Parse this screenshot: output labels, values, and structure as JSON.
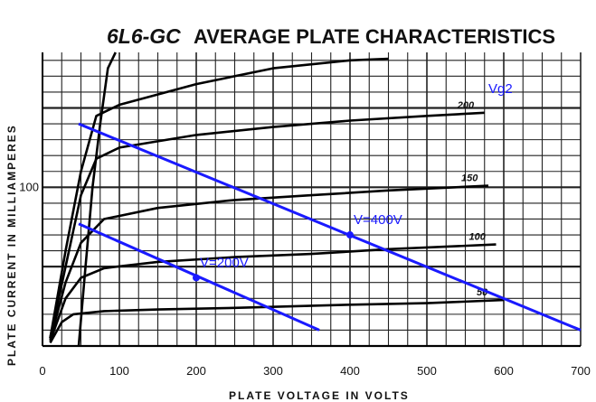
{
  "chart_data": {
    "type": "line",
    "title_tube": "6L6-GC",
    "title_main": "AVERAGE PLATE CHARACTERISTICS",
    "xlabel": "PLATE VOLTAGE IN VOLTS",
    "ylabel": "PLATE CURRENT IN MILLIAMPERES",
    "xlim": [
      0,
      700
    ],
    "ylim": [
      0,
      185
    ],
    "x_ticks": [
      0,
      100,
      200,
      300,
      400,
      500,
      600,
      700
    ],
    "y_ticks_labeled": [
      100
    ],
    "grid": true,
    "series": [
      {
        "name": "",
        "values": [
          [
            47,
            0
          ],
          [
            55,
            45
          ],
          [
            65,
            100
          ],
          [
            75,
            140
          ],
          [
            85,
            175
          ],
          [
            95,
            185
          ]
        ]
      },
      {
        "name": "",
        "values": [
          [
            10,
            5
          ],
          [
            30,
            60
          ],
          [
            50,
            110
          ],
          [
            70,
            145
          ],
          [
            100,
            152
          ],
          [
            200,
            165
          ],
          [
            300,
            175
          ],
          [
            400,
            180
          ],
          [
            450,
            181
          ]
        ]
      },
      {
        "name": "200",
        "values": [
          [
            10,
            5
          ],
          [
            30,
            50
          ],
          [
            50,
            95
          ],
          [
            70,
            118
          ],
          [
            100,
            125
          ],
          [
            200,
            133
          ],
          [
            300,
            138
          ],
          [
            400,
            142
          ],
          [
            500,
            145
          ],
          [
            575,
            147
          ]
        ]
      },
      {
        "name": "150",
        "values": [
          [
            10,
            4
          ],
          [
            30,
            40
          ],
          [
            50,
            65
          ],
          [
            80,
            80
          ],
          [
            150,
            87
          ],
          [
            250,
            92
          ],
          [
            350,
            95
          ],
          [
            450,
            98
          ],
          [
            580,
            101
          ]
        ]
      },
      {
        "name": "100",
        "values": [
          [
            10,
            3
          ],
          [
            30,
            30
          ],
          [
            50,
            43
          ],
          [
            80,
            49
          ],
          [
            150,
            53
          ],
          [
            250,
            56
          ],
          [
            350,
            58
          ],
          [
            450,
            61
          ],
          [
            590,
            64
          ]
        ]
      },
      {
        "name": "50",
        "values": [
          [
            10,
            2
          ],
          [
            25,
            15
          ],
          [
            40,
            20
          ],
          [
            80,
            22
          ],
          [
            150,
            23
          ],
          [
            250,
            24
          ],
          [
            400,
            26
          ],
          [
            500,
            27
          ],
          [
            600,
            29
          ]
        ]
      }
    ],
    "load_lines": [
      {
        "label": "V=400V",
        "points": [
          [
            47,
            140
          ],
          [
            700,
            10
          ]
        ],
        "marker": [
          400,
          70
        ]
      },
      {
        "label": "V=200V",
        "points": [
          [
            47,
            77
          ],
          [
            360,
            10
          ]
        ],
        "marker": [
          200,
          43
        ]
      }
    ],
    "annotation": "Vg2"
  }
}
